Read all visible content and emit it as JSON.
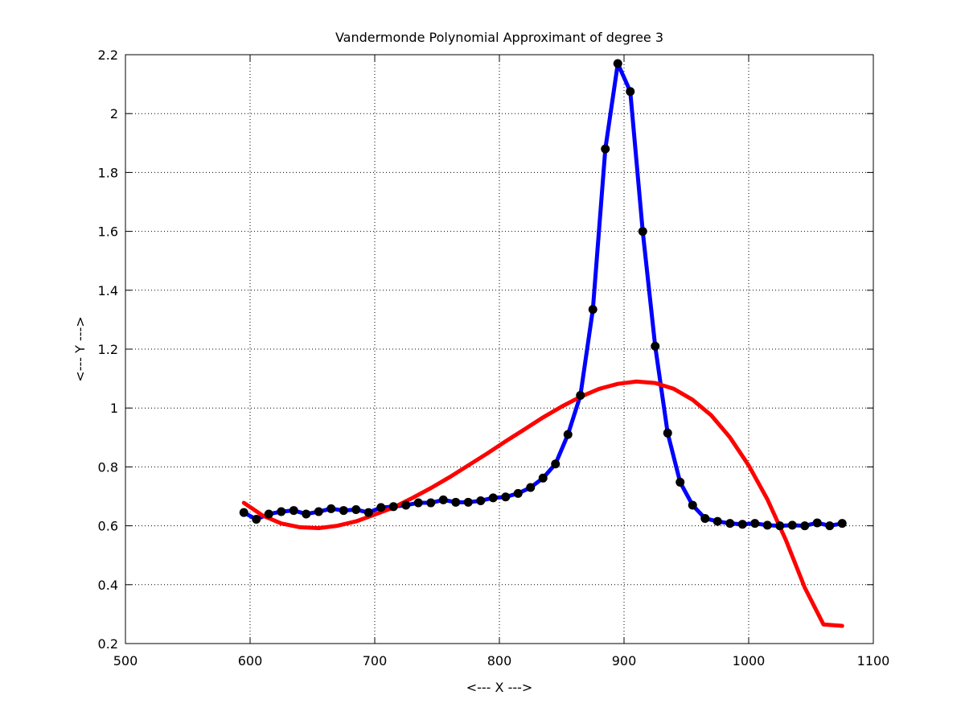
{
  "chart_data": {
    "type": "line",
    "title": "Vandermonde Polynomial Approximant of degree 3",
    "xlabel": "<--- X --->",
    "ylabel": "<--- Y --->",
    "xlim": [
      500,
      1100
    ],
    "ylim": [
      0.2,
      2.2
    ],
    "xticks": [
      500,
      600,
      700,
      800,
      900,
      1000,
      1100
    ],
    "yticks": [
      0.2,
      0.4,
      0.6,
      0.8,
      1,
      1.2,
      1.4,
      1.6,
      1.8,
      2,
      2.2
    ],
    "grid": true,
    "colors": {
      "data": "#0000ff",
      "markers": "#000000",
      "fit": "#ff0000"
    },
    "series": [
      {
        "x": [
          595,
          605,
          615,
          625,
          635,
          645,
          655,
          665,
          675,
          685,
          695,
          705,
          715,
          725,
          735,
          745,
          755,
          765,
          775,
          785,
          795,
          805,
          815,
          825,
          835,
          845,
          855,
          865,
          875,
          885,
          895,
          905,
          915,
          925,
          935,
          945,
          955,
          965,
          975,
          985,
          995,
          1005,
          1015,
          1025,
          1035,
          1045,
          1055,
          1065,
          1075
        ],
        "y": [
          0.645,
          0.622,
          0.64,
          0.648,
          0.652,
          0.64,
          0.648,
          0.658,
          0.652,
          0.655,
          0.645,
          0.662,
          0.665,
          0.67,
          0.678,
          0.678,
          0.688,
          0.68,
          0.68,
          0.685,
          0.695,
          0.698,
          0.71,
          0.73,
          0.762,
          0.81,
          0.91,
          1.043,
          1.335,
          1.88,
          2.17,
          2.075,
          1.6,
          1.21,
          0.915,
          0.748,
          0.67,
          0.625,
          0.615,
          0.608,
          0.605,
          0.608,
          0.602,
          0.6,
          0.602,
          0.6,
          0.61,
          0.6,
          0.608
        ]
      },
      {
        "x": [
          595,
          610,
          625,
          640,
          655,
          670,
          685,
          700,
          715,
          730,
          745,
          760,
          775,
          790,
          805,
          820,
          835,
          850,
          865,
          880,
          895,
          910,
          925,
          940,
          955,
          970,
          985,
          1000,
          1015,
          1030,
          1045,
          1060,
          1075
        ],
        "y": [
          0.678,
          0.635,
          0.608,
          0.595,
          0.592,
          0.6,
          0.615,
          0.638,
          0.662,
          0.694,
          0.728,
          0.765,
          0.805,
          0.845,
          0.887,
          0.927,
          0.968,
          1.005,
          1.038,
          1.065,
          1.082,
          1.09,
          1.085,
          1.065,
          1.028,
          0.975,
          0.9,
          0.805,
          0.69,
          0.55,
          0.39,
          0.265,
          0.26
        ]
      }
    ]
  }
}
